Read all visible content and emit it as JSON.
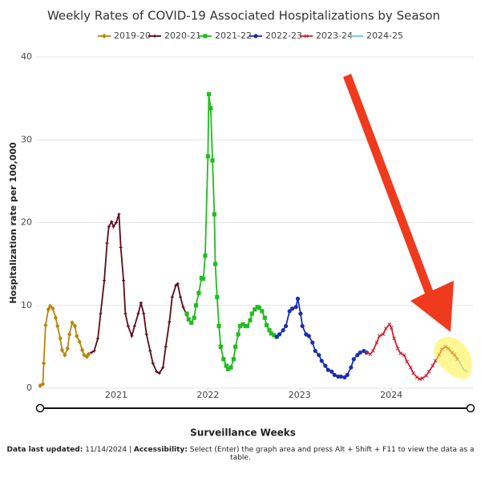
{
  "chart_data": {
    "type": "line",
    "title": "Weekly Rates of COVID-19 Associated Hospitalizations by Season",
    "y_label": "Hospitalization rate per 100,000",
    "x_label": "Surveillance Weeks",
    "xlim": [
      2020.17,
      2024.89
    ],
    "xticks": [
      2021,
      2022,
      2023,
      2024
    ],
    "ylim": [
      0,
      40
    ],
    "yticks": [
      0,
      10,
      20,
      30,
      40
    ],
    "grid": true,
    "legend": "top",
    "series": [
      {
        "name": "2019-20",
        "color": "#b8860b",
        "marker": "diamond",
        "x": [
          2020.17,
          2020.2,
          2020.21,
          2020.23,
          2020.26,
          2020.28,
          2020.31,
          2020.34,
          2020.36,
          2020.39,
          2020.41,
          2020.44,
          2020.47,
          2020.49,
          2020.52,
          2020.55,
          2020.57,
          2020.6,
          2020.63,
          2020.65,
          2020.68,
          2020.7
        ],
        "values": [
          0.3,
          0.5,
          3,
          7.6,
          9.5,
          9.9,
          9.6,
          8.5,
          7.5,
          6,
          4.6,
          4,
          4.8,
          6.5,
          7.9,
          7.5,
          6.3,
          5.6,
          4.6,
          4,
          3.8,
          4.1
        ]
      },
      {
        "name": "2020-21",
        "color": "#5c0a1a",
        "marker": "plus",
        "x": [
          2020.73,
          2020.76,
          2020.8,
          2020.83,
          2020.87,
          2020.9,
          2020.92,
          2020.95,
          2020.97,
          2021.0,
          2021.03,
          2021.05,
          2021.08,
          2021.1,
          2021.13,
          2021.17,
          2021.2,
          2021.24,
          2021.27,
          2021.3,
          2021.33,
          2021.37,
          2021.4,
          2021.44,
          2021.47,
          2021.51,
          2021.54,
          2021.58,
          2021.61,
          2021.65,
          2021.67,
          2021.7,
          2021.73,
          2021.77
        ],
        "values": [
          4.3,
          4.5,
          6,
          9,
          13,
          17.5,
          19.5,
          20.1,
          19.5,
          20,
          21,
          17,
          13,
          9,
          7.5,
          6.3,
          7.5,
          9,
          10.3,
          9,
          6.5,
          4.5,
          3,
          2,
          1.8,
          2.5,
          5,
          8,
          11,
          12.4,
          12.6,
          11,
          9.8,
          8.8
        ]
      },
      {
        "name": "2021-22",
        "color": "#22bb22",
        "marker": "square",
        "x": [
          2021.77,
          2021.79,
          2021.82,
          2021.85,
          2021.87,
          2021.9,
          2021.93,
          2021.95,
          2021.97,
          2022.0,
          2022.01,
          2022.03,
          2022.05,
          2022.07,
          2022.08,
          2022.1,
          2022.12,
          2022.14,
          2022.17,
          2022.2,
          2022.22,
          2022.25,
          2022.28,
          2022.3,
          2022.33,
          2022.35,
          2022.38,
          2022.41,
          2022.43,
          2022.46,
          2022.48,
          2022.51,
          2022.54,
          2022.56,
          2022.59,
          2022.62,
          2022.64,
          2022.67,
          2022.69,
          2022.72,
          2022.75
        ],
        "values": [
          9,
          8.3,
          7.9,
          8.5,
          10,
          11.5,
          13.3,
          13.2,
          16,
          28,
          35.5,
          33.8,
          27.5,
          21,
          15,
          11,
          7.5,
          5,
          3.5,
          2.7,
          2.3,
          2.5,
          3.5,
          5,
          6.5,
          7.5,
          7.7,
          7.5,
          7.5,
          8.2,
          9,
          9.5,
          9.8,
          9.7,
          9.3,
          8.5,
          7.6,
          7,
          6.6,
          6.4,
          6.2
        ]
      },
      {
        "name": "2022-23",
        "color": "#1a2db0",
        "marker": "circle",
        "x": [
          2022.75,
          2022.78,
          2022.82,
          2022.85,
          2022.89,
          2022.92,
          2022.96,
          2022.98,
          2023.01,
          2023.03,
          2023.07,
          2023.1,
          2023.14,
          2023.17,
          2023.21,
          2023.24,
          2023.28,
          2023.31,
          2023.35,
          2023.38,
          2023.42,
          2023.45,
          2023.49,
          2023.52,
          2023.56,
          2023.59,
          2023.63,
          2023.66,
          2023.7,
          2023.73
        ],
        "values": [
          6.2,
          6.5,
          7,
          7.5,
          9.3,
          9.6,
          9.8,
          10.8,
          9,
          7.5,
          6.5,
          6.3,
          5.5,
          4.5,
          4,
          3.3,
          2.7,
          2.2,
          2,
          1.6,
          1.4,
          1.4,
          1.3,
          1.6,
          2.5,
          3.5,
          4,
          4.3,
          4.5,
          4.3
        ]
      },
      {
        "name": "2023-24",
        "color": "#cc2233",
        "marker": "x",
        "x": [
          2023.73,
          2023.77,
          2023.8,
          2023.84,
          2023.87,
          2023.91,
          2023.94,
          2023.98,
          2024.0,
          2024.03,
          2024.07,
          2024.1,
          2024.14,
          2024.17,
          2024.21,
          2024.24,
          2024.28,
          2024.31,
          2024.34,
          2024.38,
          2024.41,
          2024.45,
          2024.48,
          2024.52,
          2024.55,
          2024.59,
          2024.62,
          2024.66,
          2024.69,
          2024.72
        ],
        "values": [
          4.3,
          4.1,
          4.5,
          5.5,
          6.3,
          6.5,
          7.2,
          7.7,
          7.3,
          6,
          4.8,
          4.2,
          4,
          3.2,
          2.5,
          1.8,
          1.3,
          1.1,
          1.2,
          1.5,
          2,
          2.7,
          3.3,
          4,
          4.7,
          5,
          4.8,
          4.3,
          4,
          3.5
        ]
      },
      {
        "name": "2024-25",
        "color": "#66ccee",
        "marker": "none",
        "x": [
          2024.72,
          2024.76,
          2024.79,
          2024.83
        ],
        "values": [
          3.5,
          2.8,
          2.2,
          2
        ]
      }
    ],
    "footer": {
      "updated_label": "Data last updated:",
      "updated_value": "11/14/2024 |",
      "accessibility_label": "Accessibility:",
      "accessibility_text": "Select (Enter) the graph area and press Alt + Shift + F11 to view the data as a table."
    }
  }
}
